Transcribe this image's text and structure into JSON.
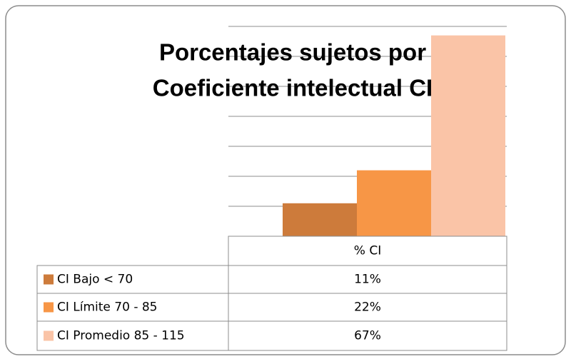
{
  "chart_data": {
    "type": "bar",
    "title": [
      "Porcentajes sujetos por",
      "Coeficiente intelectual CI"
    ],
    "categories": [
      "% CI"
    ],
    "series": [
      {
        "name": "CI Bajo < 70",
        "color": "#cd7b3b",
        "values": [
          11
        ],
        "value_labels": [
          "11%"
        ]
      },
      {
        "name": "CI Límite 70 - 85",
        "color": "#f79646",
        "values": [
          22
        ],
        "value_labels": [
          "22%"
        ]
      },
      {
        "name": "CI Promedio 85 - 115",
        "color": "#fac4a7",
        "values": [
          67
        ],
        "value_labels": [
          "67%"
        ]
      }
    ],
    "ylim": [
      0,
      70
    ],
    "yticks": [
      0,
      10,
      20,
      30,
      40,
      50,
      60,
      70
    ],
    "grid": true
  }
}
